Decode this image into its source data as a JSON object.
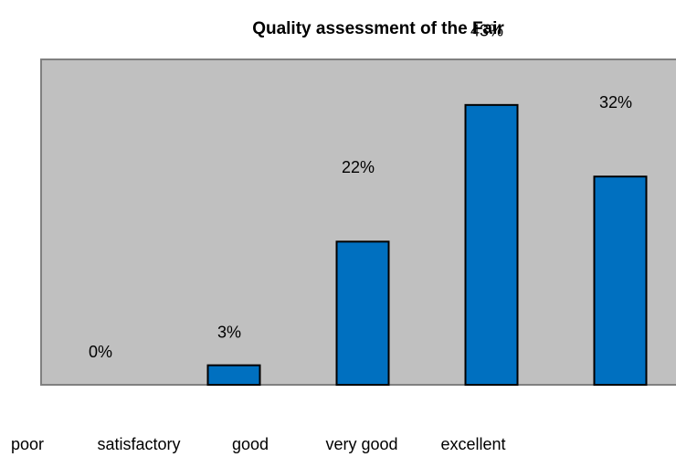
{
  "chart_data": {
    "type": "bar",
    "title": "Quality assessment of the Fair",
    "categories": [
      "poor",
      "satisfactory",
      "good",
      "very good",
      "excellent"
    ],
    "values": [
      0,
      3,
      22,
      43,
      32
    ],
    "value_labels": [
      "0%",
      "3%",
      "22%",
      "43%",
      "32%"
    ],
    "color": "#0070c0",
    "ylim": [
      0,
      50
    ]
  }
}
